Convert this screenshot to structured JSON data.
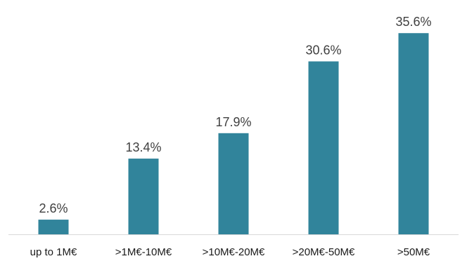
{
  "chart_data": {
    "type": "bar",
    "categories": [
      "up to 1M€",
      ">1M€-10M€",
      ">10M€-20M€",
      ">20M€-50M€",
      ">50M€"
    ],
    "values": [
      2.6,
      13.4,
      17.9,
      30.6,
      35.6
    ],
    "value_labels": [
      "2.6%",
      "13.4%",
      "17.9%",
      "30.6%",
      "35.6%"
    ],
    "unit": "%",
    "ylim": [
      0,
      36
    ],
    "bar_color": "#31849B",
    "axis_color": "#D9D9D9",
    "grid": false,
    "legend": "none"
  }
}
